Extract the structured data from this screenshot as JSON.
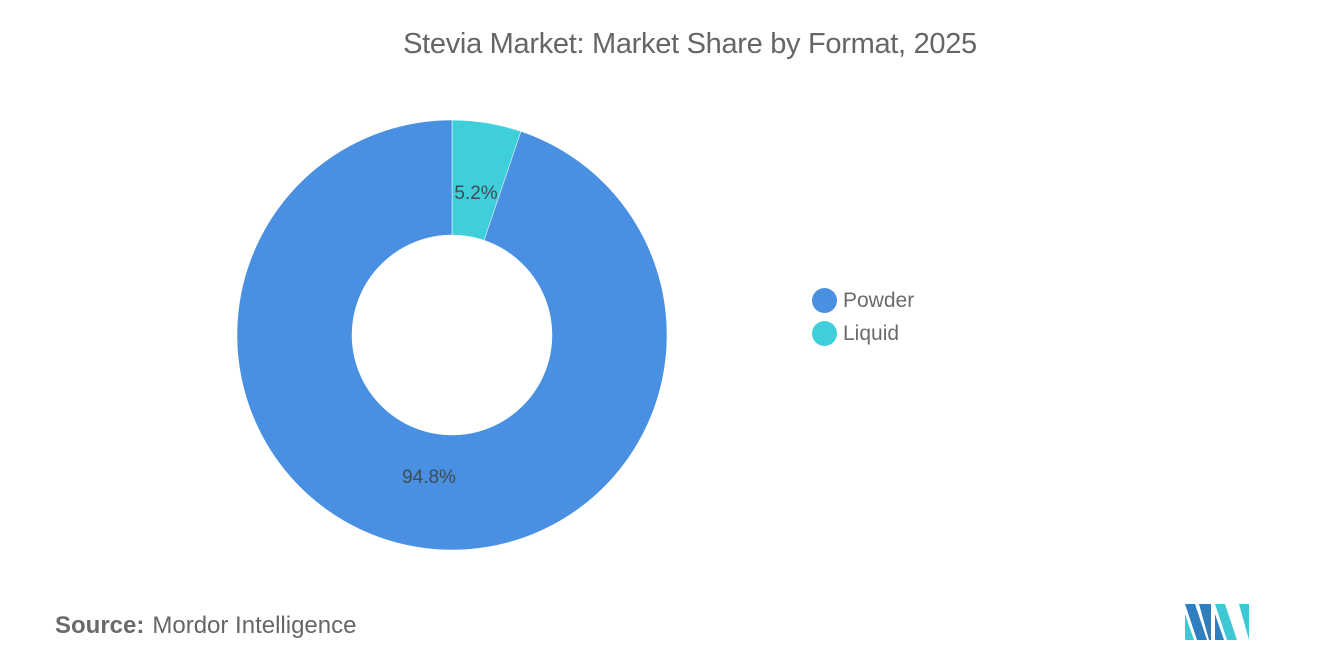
{
  "title": "Stevia Market: Market Share by Format, 2025",
  "chart_data": {
    "type": "pie",
    "variant": "donut",
    "title": "Stevia Market: Market Share by Format, 2025",
    "categories": [
      "Powder",
      "Liquid"
    ],
    "values": [
      94.8,
      5.2
    ],
    "unit": "%",
    "colors": [
      "#4a90e2",
      "#3ecfda"
    ],
    "data_labels": [
      "94.8%",
      "5.2%"
    ],
    "legend_position": "right",
    "start_angle_deg": 0,
    "direction": "clockwise, Liquid first from 12 o'clock"
  },
  "labels": {
    "powder": "94.8%",
    "liquid": "5.2%"
  },
  "legend": {
    "items": [
      {
        "label": "Powder",
        "color": "#4a90e2"
      },
      {
        "label": "Liquid",
        "color": "#3ecfda"
      }
    ]
  },
  "footer": {
    "source_key": "Source:",
    "source_value": "Mordor Intelligence"
  },
  "logo": {
    "icon": "mordor-intelligence-logo-icon"
  }
}
